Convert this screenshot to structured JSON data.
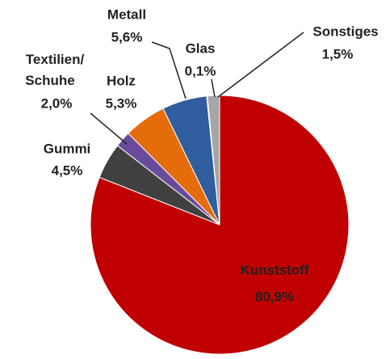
{
  "chart_data": {
    "type": "pie",
    "categories": [
      "Kunststoff",
      "Gummi",
      "Textilien/Schuhe",
      "Holz",
      "Metall",
      "Glas",
      "Sonstiges"
    ],
    "values": [
      80.9,
      4.5,
      2.0,
      5.3,
      5.6,
      0.1,
      1.5
    ],
    "value_labels": [
      "80,9%",
      "4,5%",
      "2,0%",
      "5,3%",
      "5,6%",
      "0,1%",
      "1,5%"
    ],
    "colors": [
      "#c00000",
      "#404040",
      "#6a4a9a",
      "#e46c0a",
      "#2f5d9e",
      "#8eb4d6",
      "#a6a6a6"
    ]
  }
}
